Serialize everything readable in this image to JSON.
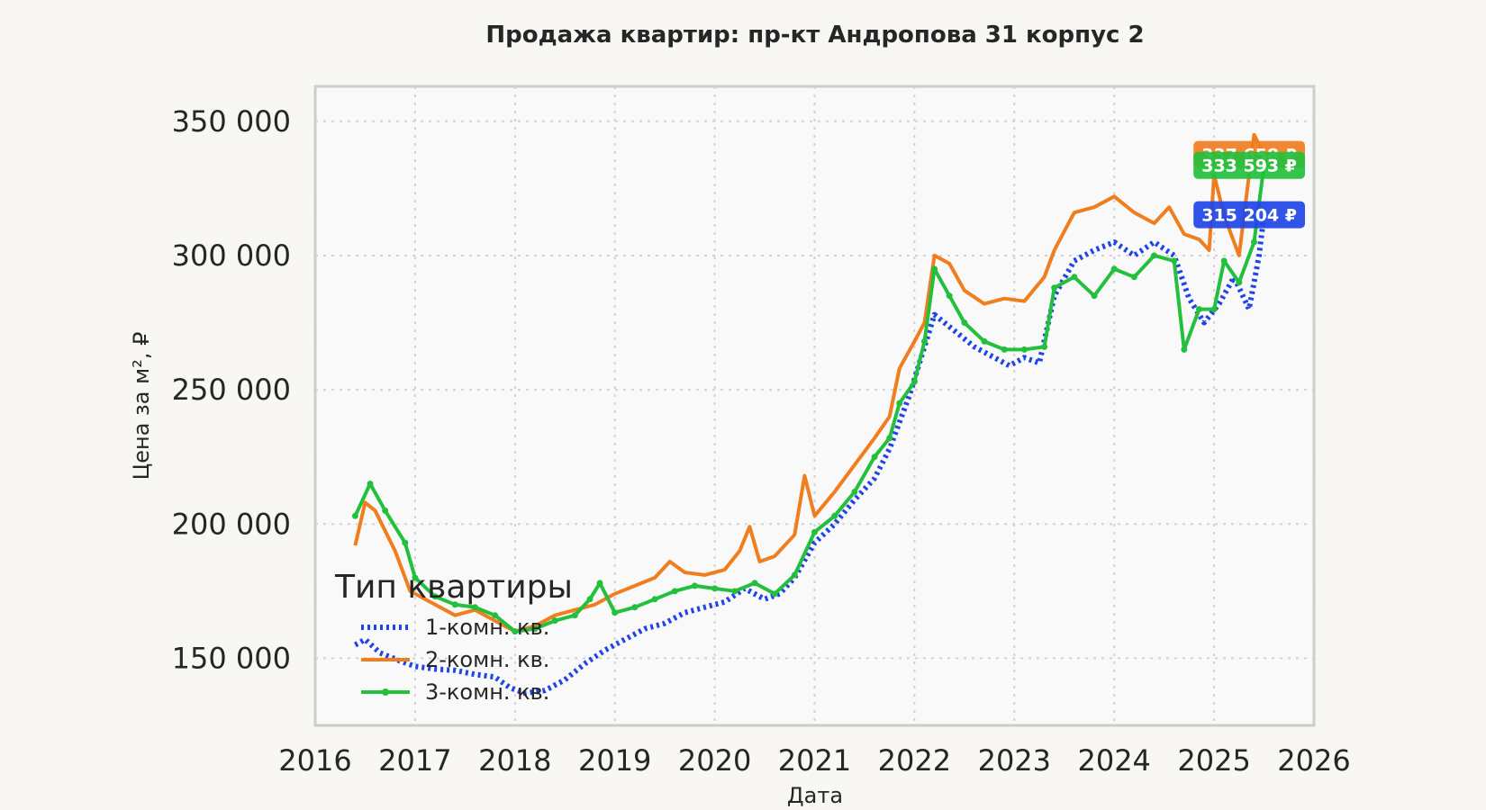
{
  "chart_data": {
    "type": "line",
    "title": "Продажа квартир: пр-кт Андропова 31 корпус 2",
    "xlabel": "Дата",
    "ylabel": "Цена за м², ₽",
    "xlim": [
      2016.0,
      2026.0
    ],
    "ylim": [
      125000,
      363000
    ],
    "x_ticks": [
      2016,
      2017,
      2018,
      2019,
      2020,
      2021,
      2022,
      2023,
      2024,
      2025,
      2026
    ],
    "x_tick_labels": [
      "2016",
      "2017",
      "2018",
      "2019",
      "2020",
      "2021",
      "2022",
      "2023",
      "2024",
      "2025",
      "2026"
    ],
    "y_ticks": [
      150000,
      200000,
      250000,
      300000,
      350000
    ],
    "y_tick_labels": [
      "150 000",
      "200 000",
      "250 000",
      "300 000",
      "350 000"
    ],
    "grid": true,
    "legend": {
      "title": "Тип квартиры",
      "placement": "lower-left"
    },
    "series": [
      {
        "name": "1-комн. кв.",
        "color": "#1f45e6",
        "style": "dotted",
        "end_label": "315 204 ₽",
        "end_value": 315204,
        "points": [
          [
            2016.4,
            155000
          ],
          [
            2016.5,
            157000
          ],
          [
            2016.65,
            152000
          ],
          [
            2016.85,
            149000
          ],
          [
            2017.0,
            147000
          ],
          [
            2017.2,
            146000
          ],
          [
            2017.4,
            145500
          ],
          [
            2017.6,
            144000
          ],
          [
            2017.8,
            143000
          ],
          [
            2017.95,
            139000
          ],
          [
            2018.1,
            137000
          ],
          [
            2018.3,
            138000
          ],
          [
            2018.5,
            142000
          ],
          [
            2018.7,
            148000
          ],
          [
            2018.9,
            153000
          ],
          [
            2019.1,
            157000
          ],
          [
            2019.3,
            161000
          ],
          [
            2019.5,
            163000
          ],
          [
            2019.7,
            167000
          ],
          [
            2019.9,
            169000
          ],
          [
            2020.1,
            171000
          ],
          [
            2020.3,
            176000
          ],
          [
            2020.5,
            172000
          ],
          [
            2020.65,
            174000
          ],
          [
            2020.8,
            180000
          ],
          [
            2021.0,
            193000
          ],
          [
            2021.2,
            200000
          ],
          [
            2021.4,
            209000
          ],
          [
            2021.6,
            217000
          ],
          [
            2021.75,
            228000
          ],
          [
            2021.85,
            238000
          ],
          [
            2021.95,
            248000
          ],
          [
            2022.05,
            260000
          ],
          [
            2022.2,
            278000
          ],
          [
            2022.4,
            272000
          ],
          [
            2022.6,
            266000
          ],
          [
            2022.8,
            262000
          ],
          [
            2022.95,
            259000
          ],
          [
            2023.1,
            262000
          ],
          [
            2023.25,
            260000
          ],
          [
            2023.4,
            285000
          ],
          [
            2023.6,
            298000
          ],
          [
            2023.8,
            302000
          ],
          [
            2024.0,
            305000
          ],
          [
            2024.2,
            300000
          ],
          [
            2024.4,
            305000
          ],
          [
            2024.6,
            300000
          ],
          [
            2024.75,
            284000
          ],
          [
            2024.9,
            275000
          ],
          [
            2025.05,
            282000
          ],
          [
            2025.2,
            292000
          ],
          [
            2025.35,
            280000
          ],
          [
            2025.45,
            300000
          ],
          [
            2025.5,
            315204
          ]
        ]
      },
      {
        "name": "2-комн. кв.",
        "color": "#f07d1e",
        "style": "solid",
        "end_label": "337 658 ₽",
        "end_value": 337658,
        "points": [
          [
            2016.4,
            192000
          ],
          [
            2016.5,
            208000
          ],
          [
            2016.6,
            205000
          ],
          [
            2016.8,
            190000
          ],
          [
            2016.95,
            175000
          ],
          [
            2017.2,
            170000
          ],
          [
            2017.4,
            166000
          ],
          [
            2017.6,
            168000
          ],
          [
            2017.8,
            164000
          ],
          [
            2018.0,
            160000
          ],
          [
            2018.2,
            162000
          ],
          [
            2018.4,
            166000
          ],
          [
            2018.6,
            168000
          ],
          [
            2018.8,
            170000
          ],
          [
            2019.0,
            174000
          ],
          [
            2019.2,
            177000
          ],
          [
            2019.4,
            180000
          ],
          [
            2019.55,
            186000
          ],
          [
            2019.7,
            182000
          ],
          [
            2019.9,
            181000
          ],
          [
            2020.1,
            183000
          ],
          [
            2020.25,
            190000
          ],
          [
            2020.35,
            199000
          ],
          [
            2020.45,
            186000
          ],
          [
            2020.6,
            188000
          ],
          [
            2020.8,
            196000
          ],
          [
            2020.9,
            218000
          ],
          [
            2021.0,
            203000
          ],
          [
            2021.2,
            212000
          ],
          [
            2021.4,
            222000
          ],
          [
            2021.6,
            232000
          ],
          [
            2021.75,
            240000
          ],
          [
            2021.85,
            258000
          ],
          [
            2022.0,
            268000
          ],
          [
            2022.1,
            275000
          ],
          [
            2022.2,
            300000
          ],
          [
            2022.35,
            297000
          ],
          [
            2022.5,
            287000
          ],
          [
            2022.7,
            282000
          ],
          [
            2022.9,
            284000
          ],
          [
            2023.1,
            283000
          ],
          [
            2023.3,
            292000
          ],
          [
            2023.4,
            302000
          ],
          [
            2023.6,
            316000
          ],
          [
            2023.8,
            318000
          ],
          [
            2024.0,
            322000
          ],
          [
            2024.2,
            316000
          ],
          [
            2024.4,
            312000
          ],
          [
            2024.55,
            318000
          ],
          [
            2024.7,
            308000
          ],
          [
            2024.85,
            306000
          ],
          [
            2024.95,
            302000
          ],
          [
            2025.0,
            330000
          ],
          [
            2025.1,
            315000
          ],
          [
            2025.25,
            300000
          ],
          [
            2025.4,
            345000
          ],
          [
            2025.5,
            337658
          ]
        ]
      },
      {
        "name": "3-комн. кв.",
        "color": "#22c03c",
        "style": "solid-marker",
        "end_label": "333 593 ₽",
        "end_value": 333593,
        "points": [
          [
            2016.4,
            203000
          ],
          [
            2016.55,
            215000
          ],
          [
            2016.7,
            205000
          ],
          [
            2016.9,
            193000
          ],
          [
            2017.0,
            180000
          ],
          [
            2017.2,
            173000
          ],
          [
            2017.4,
            170000
          ],
          [
            2017.6,
            169000
          ],
          [
            2017.8,
            166000
          ],
          [
            2018.0,
            160000
          ],
          [
            2018.2,
            161000
          ],
          [
            2018.4,
            164000
          ],
          [
            2018.6,
            166000
          ],
          [
            2018.75,
            172000
          ],
          [
            2018.85,
            178000
          ],
          [
            2019.0,
            167000
          ],
          [
            2019.2,
            169000
          ],
          [
            2019.4,
            172000
          ],
          [
            2019.6,
            175000
          ],
          [
            2019.8,
            177000
          ],
          [
            2020.0,
            176000
          ],
          [
            2020.2,
            175000
          ],
          [
            2020.4,
            178000
          ],
          [
            2020.6,
            174000
          ],
          [
            2020.8,
            181000
          ],
          [
            2021.0,
            197000
          ],
          [
            2021.2,
            203000
          ],
          [
            2021.4,
            212000
          ],
          [
            2021.6,
            225000
          ],
          [
            2021.75,
            232000
          ],
          [
            2021.85,
            245000
          ],
          [
            2022.0,
            253000
          ],
          [
            2022.1,
            268000
          ],
          [
            2022.2,
            295000
          ],
          [
            2022.35,
            285000
          ],
          [
            2022.5,
            275000
          ],
          [
            2022.7,
            268000
          ],
          [
            2022.9,
            265000
          ],
          [
            2023.1,
            265000
          ],
          [
            2023.3,
            266000
          ],
          [
            2023.4,
            288000
          ],
          [
            2023.6,
            292000
          ],
          [
            2023.8,
            285000
          ],
          [
            2024.0,
            295000
          ],
          [
            2024.2,
            292000
          ],
          [
            2024.4,
            300000
          ],
          [
            2024.6,
            298000
          ],
          [
            2024.7,
            265000
          ],
          [
            2024.85,
            280000
          ],
          [
            2025.0,
            280000
          ],
          [
            2025.1,
            298000
          ],
          [
            2025.25,
            290000
          ],
          [
            2025.4,
            305000
          ],
          [
            2025.5,
            333593
          ]
        ]
      }
    ]
  }
}
